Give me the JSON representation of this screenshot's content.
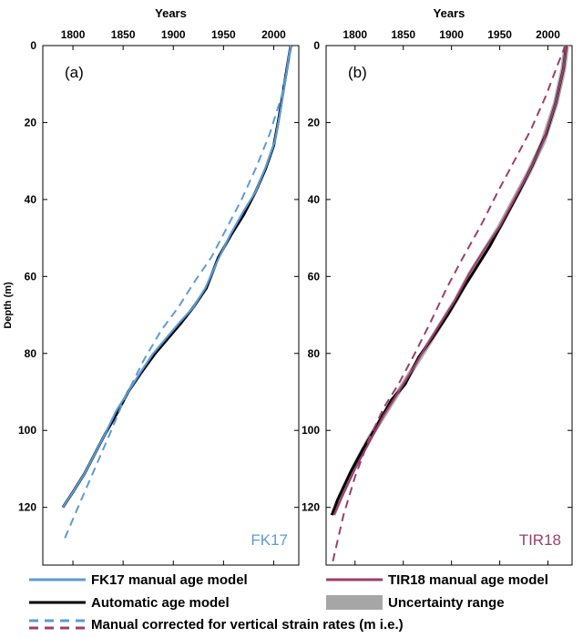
{
  "colors": {
    "fk17": "#5b9bd5",
    "tir18": "#9b3f6b",
    "automatic": "#000000",
    "uncertainty": "#a6a6a6"
  },
  "legend": {
    "fk17_manual": "FK17 manual age model",
    "tir18_manual": "TIR18 manual age model",
    "automatic": "Automatic age model",
    "uncertainty": "Uncertainty range",
    "corrected": "Manual corrected for vertical strain rates (m i.e.)"
  },
  "chart_data": [
    {
      "type": "line",
      "panel_label": "(a)",
      "core_label": "FK17",
      "xlabel": "Years",
      "ylabel": "Depth (m)",
      "x_axis_position": "top",
      "y_axis_reversed": true,
      "xlim": [
        1770,
        2025
      ],
      "ylim": [
        0,
        135
      ],
      "xticks": [
        1800,
        1850,
        1900,
        1950,
        2000
      ],
      "yticks": [
        0,
        20,
        40,
        60,
        80,
        100,
        120
      ],
      "series": [
        {
          "key": "automatic",
          "style": "solid",
          "color": "#000000",
          "points": [
            [
              1790,
              120
            ],
            [
              1800,
              116
            ],
            [
              1812,
              111
            ],
            [
              1822,
              106
            ],
            [
              1832,
              101
            ],
            [
              1843,
              96
            ],
            [
              1855,
              90
            ],
            [
              1868,
              85
            ],
            [
              1882,
              80
            ],
            [
              1895,
              76
            ],
            [
              1908,
              72
            ],
            [
              1920,
              68
            ],
            [
              1933,
              63
            ],
            [
              1945,
              55
            ],
            [
              1958,
              49
            ],
            [
              1970,
              44
            ],
            [
              1982,
              38
            ],
            [
              1992,
              32
            ],
            [
              2000,
              26
            ],
            [
              2005,
              19
            ],
            [
              2010,
              11
            ],
            [
              2015,
              3
            ],
            [
              2017,
              0
            ]
          ]
        },
        {
          "key": "fk17_manual",
          "style": "solid",
          "color": "#5b9bd5",
          "points": [
            [
              1790,
              120
            ],
            [
              1800,
              116
            ],
            [
              1812,
              111
            ],
            [
              1822,
              106
            ],
            [
              1832,
              101
            ],
            [
              1843,
              95
            ],
            [
              1855,
              90
            ],
            [
              1867,
              85
            ],
            [
              1880,
              80
            ],
            [
              1893,
              76
            ],
            [
              1906,
              72
            ],
            [
              1920,
              68
            ],
            [
              1932,
              63
            ],
            [
              1944,
              56
            ],
            [
              1957,
              49
            ],
            [
              1970,
              43
            ],
            [
              1982,
              38
            ],
            [
              1993,
              31
            ],
            [
              2001,
              25
            ],
            [
              2006,
              18
            ],
            [
              2011,
              10
            ],
            [
              2015,
              3
            ],
            [
              2017,
              0
            ]
          ]
        },
        {
          "key": "corrected",
          "style": "dashed",
          "color": "#5b9bd5",
          "points": [
            [
              1792,
              128
            ],
            [
              1805,
              120
            ],
            [
              1820,
              111
            ],
            [
              1835,
              102
            ],
            [
              1851,
              92
            ],
            [
              1870,
              82
            ],
            [
              1888,
              74
            ],
            [
              1905,
              68
            ],
            [
              1922,
              61
            ],
            [
              1938,
              55
            ],
            [
              1952,
              48
            ],
            [
              1968,
              40
            ],
            [
              1982,
              32
            ],
            [
              1996,
              23
            ],
            [
              2008,
              13
            ],
            [
              2015,
              4
            ],
            [
              2017,
              0
            ]
          ]
        }
      ]
    },
    {
      "type": "line",
      "panel_label": "(b)",
      "core_label": "TIR18",
      "xlabel": "Years",
      "ylabel": "",
      "x_axis_position": "top",
      "y_axis_reversed": true,
      "xlim": [
        1770,
        2025
      ],
      "ylim": [
        0,
        135
      ],
      "xticks": [
        1800,
        1850,
        1900,
        1950,
        2000
      ],
      "yticks": [
        0,
        20,
        40,
        60,
        80,
        100,
        120
      ],
      "series": [
        {
          "key": "uncertainty",
          "style": "band",
          "color": "#a6a6a6",
          "points": [
            [
              1777,
              122
            ],
            [
              1785,
              117
            ],
            [
              1800,
              109
            ],
            [
              1815,
              102
            ],
            [
              1830,
              96
            ],
            [
              1845,
              90
            ],
            [
              1860,
              84
            ],
            [
              1875,
              78
            ],
            [
              1890,
              72
            ],
            [
              1905,
              66
            ],
            [
              1920,
              59
            ],
            [
              1935,
              53
            ],
            [
              1950,
              47
            ],
            [
              1965,
              40
            ],
            [
              1980,
              33
            ],
            [
              1995,
              25
            ],
            [
              2008,
              15
            ],
            [
              2016,
              6
            ],
            [
              2019,
              0
            ]
          ]
        },
        {
          "key": "automatic",
          "style": "solid",
          "color": "#000000",
          "points": [
            [
              1776,
              122
            ],
            [
              1782,
              118
            ],
            [
              1795,
              111
            ],
            [
              1808,
              105
            ],
            [
              1822,
              99
            ],
            [
              1838,
              92
            ],
            [
              1852,
              88
            ],
            [
              1866,
              81
            ],
            [
              1880,
              76
            ],
            [
              1896,
              70
            ],
            [
              1910,
              64
            ],
            [
              1925,
              58
            ],
            [
              1940,
              52
            ],
            [
              1955,
              45
            ],
            [
              1970,
              38
            ],
            [
              1984,
              31
            ],
            [
              1998,
              23
            ],
            [
              2008,
              15
            ],
            [
              2016,
              6
            ],
            [
              2019,
              0
            ]
          ]
        },
        {
          "key": "tir18_manual",
          "style": "solid",
          "color": "#9b3f6b",
          "points": [
            [
              1778,
              122
            ],
            [
              1787,
              117
            ],
            [
              1800,
              110
            ],
            [
              1815,
              103
            ],
            [
              1830,
              96
            ],
            [
              1845,
              90
            ],
            [
              1860,
              84
            ],
            [
              1874,
              78
            ],
            [
              1889,
              72
            ],
            [
              1904,
              66
            ],
            [
              1919,
              59
            ],
            [
              1934,
              53
            ],
            [
              1950,
              47
            ],
            [
              1965,
              40
            ],
            [
              1980,
              33
            ],
            [
              1995,
              25
            ],
            [
              2008,
              15
            ],
            [
              2016,
              6
            ],
            [
              2019,
              0
            ]
          ]
        },
        {
          "key": "corrected",
          "style": "dashed",
          "color": "#9b3f6b",
          "points": [
            [
              1777,
              134
            ],
            [
              1788,
              122
            ],
            [
              1800,
              112
            ],
            [
              1815,
              102
            ],
            [
              1830,
              94
            ],
            [
              1845,
              88
            ],
            [
              1862,
              80
            ],
            [
              1878,
              72
            ],
            [
              1895,
              63
            ],
            [
              1912,
              55
            ],
            [
              1930,
              47
            ],
            [
              1948,
              38
            ],
            [
              1965,
              30
            ],
            [
              1982,
              22
            ],
            [
              1998,
              13
            ],
            [
              2010,
              5
            ],
            [
              2018,
              0
            ]
          ]
        }
      ]
    }
  ]
}
